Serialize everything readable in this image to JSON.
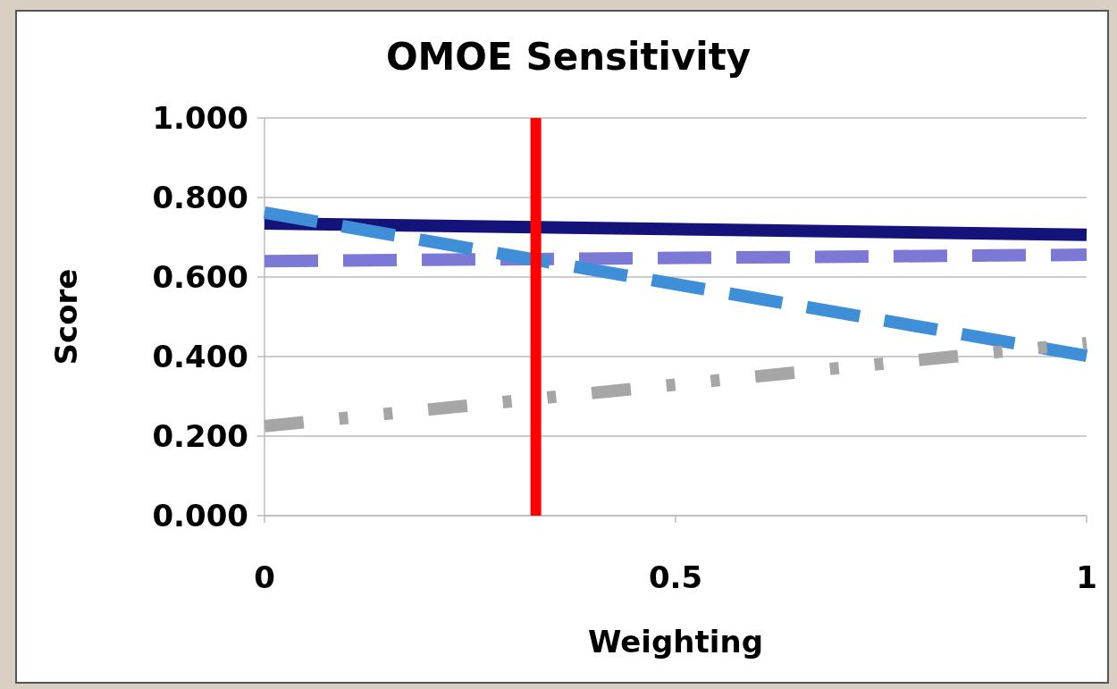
{
  "chart_data": {
    "type": "line",
    "title": "OMOE Sensitivity",
    "xlabel": "Weighting",
    "ylabel": "Score",
    "x": [
      0,
      1
    ],
    "series": [
      {
        "color": "#14137a",
        "values": [
          0.735,
          0.706
        ],
        "line_style": "solid"
      },
      {
        "color": "#7b78d6",
        "values": [
          0.64,
          0.656
        ],
        "line_style": "dashed"
      },
      {
        "color": "#3f8fd8",
        "values": [
          0.762,
          0.402
        ],
        "line_style": "dashed"
      },
      {
        "color": "#a6a6a6",
        "values": [
          0.225,
          0.434
        ],
        "line_style": "dotted"
      }
    ],
    "xlim": [
      0,
      1
    ],
    "xticks": [
      0,
      {
        "value": 0.5,
        "label": "0.5"
      },
      1
    ],
    "ylim": [
      0,
      1
    ],
    "yticks": [
      {
        "value": 0,
        "label": "0.000"
      },
      {
        "value": 0.2,
        "label": "0.200"
      },
      {
        "value": 0.4,
        "label": "0.400"
      },
      {
        "value": 0.6,
        "label": "0.600"
      },
      {
        "value": 0.8,
        "label": "0.800"
      },
      {
        "value": 1,
        "label": "1.000"
      }
    ],
    "grid": "y",
    "ref_lines": [
      {
        "axis": "x",
        "value": 0.33,
        "color": "#ff0000"
      }
    ]
  }
}
